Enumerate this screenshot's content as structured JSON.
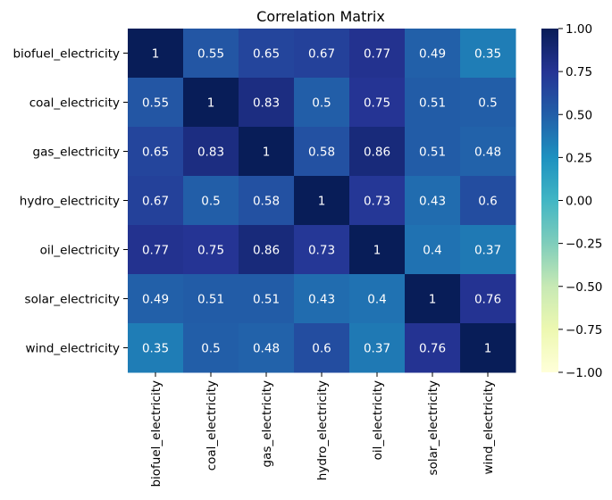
{
  "chart_data": {
    "type": "heatmap",
    "title": "Correlation Matrix",
    "xlabel": "",
    "ylabel": "",
    "rows": [
      "biofuel_electricity",
      "coal_electricity",
      "gas_electricity",
      "hydro_electricity",
      "oil_electricity",
      "solar_electricity",
      "wind_electricity"
    ],
    "columns": [
      "biofuel_electricity",
      "coal_electricity",
      "gas_electricity",
      "hydro_electricity",
      "oil_electricity",
      "solar_electricity",
      "wind_electricity"
    ],
    "values": [
      [
        1,
        0.55,
        0.65,
        0.67,
        0.77,
        0.49,
        0.35
      ],
      [
        0.55,
        1,
        0.83,
        0.5,
        0.75,
        0.51,
        0.5
      ],
      [
        0.65,
        0.83,
        1,
        0.58,
        0.86,
        0.51,
        0.48
      ],
      [
        0.67,
        0.5,
        0.58,
        1,
        0.73,
        0.43,
        0.6
      ],
      [
        0.77,
        0.75,
        0.86,
        0.73,
        1,
        0.4,
        0.37
      ],
      [
        0.49,
        0.51,
        0.51,
        0.43,
        0.4,
        1,
        0.76
      ],
      [
        0.35,
        0.5,
        0.48,
        0.6,
        0.37,
        0.76,
        1
      ]
    ],
    "annotations": [
      [
        "1",
        "0.55",
        "0.65",
        "0.67",
        "0.77",
        "0.49",
        "0.35"
      ],
      [
        "0.55",
        "1",
        "0.83",
        "0.5",
        "0.75",
        "0.51",
        "0.5"
      ],
      [
        "0.65",
        "0.83",
        "1",
        "0.58",
        "0.86",
        "0.51",
        "0.48"
      ],
      [
        "0.67",
        "0.5",
        "0.58",
        "1",
        "0.73",
        "0.43",
        "0.6"
      ],
      [
        "0.77",
        "0.75",
        "0.86",
        "0.73",
        "1",
        "0.4",
        "0.37"
      ],
      [
        "0.49",
        "0.51",
        "0.51",
        "0.43",
        "0.4",
        "1",
        "0.76"
      ],
      [
        "0.35",
        "0.5",
        "0.48",
        "0.6",
        "0.37",
        "0.76",
        "1"
      ]
    ],
    "colormap": "YlGnBu",
    "vmin": -1,
    "vmax": 1,
    "colorbar_ticks": [
      1,
      0.75,
      0.5,
      0.25,
      0,
      -0.25,
      -0.5,
      -0.75,
      -1
    ],
    "colorbar_tick_labels": [
      "1.00",
      "0.75",
      "0.50",
      "0.25",
      "0.00",
      "−0.25",
      "−0.50",
      "−0.75",
      "−1.00"
    ],
    "annotation_color_light": "#ffffff",
    "annotation_color_dark": "#262626"
  }
}
